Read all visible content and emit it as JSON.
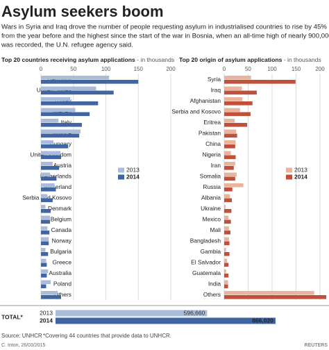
{
  "title": "Asylum seekers boom",
  "subtitle_lines": [
    "Wars in Syria and Iraq drove the number of people requesting asylum in industrialised countries to rise by 45%",
    "from the year before and the highest since the start of the war in Bosnia, when an all-time high of nearly 900,000",
    "was recorded, the U.N. refugee agency said."
  ],
  "source": "Source: UNHCR",
  "note": "*Covering 44 countries that provide data to UNHCR.",
  "credit": "C. Inton, 26/03/2015",
  "logo": "REUTERS",
  "chart_data": [
    {
      "type": "hbar",
      "title": "Top 20 countries receiving asylum applications",
      "unit": " - in thousands",
      "categories": [
        "Germany",
        "United States",
        "Turkey",
        "Sweden",
        "Italy",
        "France",
        "Hungary",
        "United Kingdom",
        "Austria",
        "Netherlands",
        "Switzerland",
        "Serbia and Kosovo",
        "Denmark",
        "Belgium",
        "Canada",
        "Norway",
        "Bulgaria",
        "Greece",
        "Australia",
        "Poland",
        "Others"
      ],
      "series": [
        {
          "name": "2013",
          "color": "#a9bcd9",
          "values": [
            105,
            85,
            45,
            53,
            27,
            61,
            19,
            30,
            18,
            14,
            21,
            10,
            7,
            14,
            10,
            12,
            7,
            8,
            11,
            15,
            26
          ]
        },
        {
          "name": "2014",
          "color": "#3f66a3",
          "values": [
            150,
            112,
            88,
            75,
            63,
            59,
            42,
            31,
            28,
            24,
            23,
            18,
            15,
            14,
            13,
            12,
            11,
            9,
            9,
            8,
            31
          ]
        }
      ],
      "xlim": [
        0,
        200
      ],
      "xticks": [
        0,
        50,
        100,
        150,
        200
      ],
      "grid": true
    },
    {
      "type": "hbar",
      "title": "Top 20 origin of asylum applications",
      "unit": " - in thousands",
      "categories": [
        "Syria",
        "Iraq",
        "Afghanistan",
        "Serbia and Kosovo",
        "Eritrea",
        "Pakistan",
        "China",
        "Nigeria",
        "Iran",
        "Somalia",
        "Russia",
        "Albania",
        "Ukraine",
        "Mexico",
        "Mali",
        "Bangladesh",
        "Gambia",
        "El Salvador",
        "Guatemala",
        "India",
        "Others"
      ],
      "series": [
        {
          "name": "2013",
          "color": "#e8b49c",
          "values": [
            56,
            37,
            38,
            33,
            22,
            25,
            24,
            14,
            23,
            26,
            40,
            12,
            3,
            9,
            10,
            10,
            4,
            6,
            4,
            8,
            188
          ]
        },
        {
          "name": "2014",
          "color": "#c0503a",
          "values": [
            149,
            68,
            59,
            55,
            48,
            27,
            23,
            24,
            20,
            23,
            17,
            16,
            15,
            14,
            13,
            11,
            11,
            9,
            9,
            8,
            213
          ]
        }
      ],
      "xlim": [
        0,
        200
      ],
      "xticks": [
        0,
        50,
        100,
        150,
        200
      ],
      "grid": true
    },
    {
      "type": "total",
      "title": "TOTAL*",
      "categories": [
        "2013",
        "2014"
      ],
      "values": [
        596660,
        866020
      ],
      "value_labels": [
        "596,660",
        "866,020"
      ],
      "colors": [
        "#a9bcd9",
        "#3f66a3"
      ],
      "xlim": [
        0,
        1000000
      ]
    }
  ]
}
